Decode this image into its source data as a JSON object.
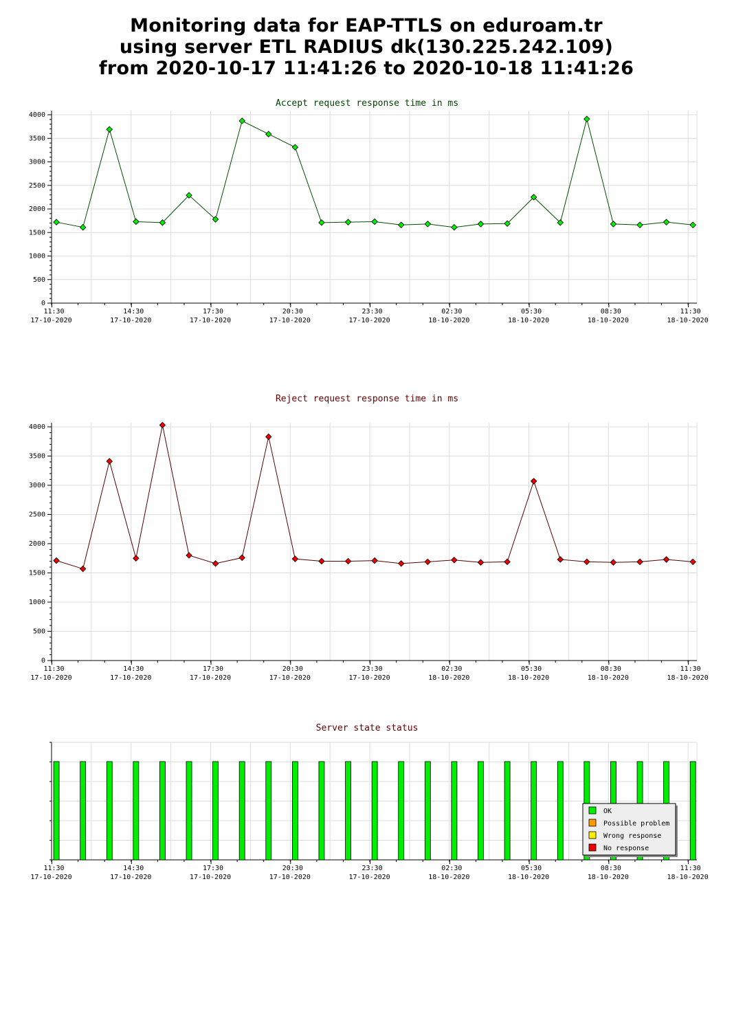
{
  "header": {
    "title_line1": "Monitoring data for EAP-TTLS on eduroam.tr",
    "title_line2": "using server ETL RADIUS dk(130.225.242.109)",
    "title_line3": "from 2020-10-17 11:41:26 to 2020-10-18 11:41:26"
  },
  "colors": {
    "accept_line": "#004d00",
    "accept_marker": "#00ee00",
    "reject_line": "#550000",
    "reject_marker": "#ee0000",
    "status_ok": "#00ee00",
    "status_possible_problem": "#ff9900",
    "status_wrong_response": "#ffee00",
    "status_no_response": "#ee0000",
    "accept_title": "#004400",
    "reject_title": "#660000",
    "status_title": "#660000"
  },
  "x_ticks": [
    {
      "time": "11:30",
      "date": "17-10-2020"
    },
    {
      "time": "14:30",
      "date": "17-10-2020"
    },
    {
      "time": "17:30",
      "date": "17-10-2020"
    },
    {
      "time": "20:30",
      "date": "17-10-2020"
    },
    {
      "time": "23:30",
      "date": "17-10-2020"
    },
    {
      "time": "02:30",
      "date": "18-10-2020"
    },
    {
      "time": "05:30",
      "date": "18-10-2020"
    },
    {
      "time": "08:30",
      "date": "18-10-2020"
    },
    {
      "time": "11:30",
      "date": "18-10-2020"
    }
  ],
  "chart_data": [
    {
      "type": "line",
      "title": "Accept request response time in ms",
      "x_unit": "hour",
      "x_range": [
        "2020-10-17 11:30",
        "2020-10-18 11:50"
      ],
      "ylim": [
        0,
        4000
      ],
      "yticks": [
        0,
        500,
        1000,
        1500,
        2000,
        2500,
        3000,
        3500,
        4000
      ],
      "grid": true,
      "x": [
        "2020-10-17 11:41",
        "2020-10-17 12:41",
        "2020-10-17 13:41",
        "2020-10-17 14:41",
        "2020-10-17 15:41",
        "2020-10-17 16:41",
        "2020-10-17 17:41",
        "2020-10-17 18:41",
        "2020-10-17 19:41",
        "2020-10-17 20:41",
        "2020-10-17 21:41",
        "2020-10-17 22:41",
        "2020-10-17 23:41",
        "2020-10-18 00:41",
        "2020-10-18 01:41",
        "2020-10-18 02:41",
        "2020-10-18 03:41",
        "2020-10-18 04:41",
        "2020-10-18 05:41",
        "2020-10-18 06:41",
        "2020-10-18 07:41",
        "2020-10-18 08:41",
        "2020-10-18 09:41",
        "2020-10-18 10:41",
        "2020-10-18 11:41"
      ],
      "values": [
        1720,
        1610,
        3690,
        1730,
        1710,
        2290,
        1780,
        3870,
        3590,
        3310,
        1710,
        1720,
        1730,
        1660,
        1680,
        1610,
        1680,
        1690,
        2250,
        1710,
        3910,
        1680,
        1660,
        1720,
        1660
      ]
    },
    {
      "type": "line",
      "title": "Reject request response time in ms",
      "x_unit": "hour",
      "x_range": [
        "2020-10-17 11:30",
        "2020-10-18 11:50"
      ],
      "ylim": [
        0,
        4000
      ],
      "yticks": [
        0,
        500,
        1000,
        1500,
        2000,
        2500,
        3000,
        3500,
        4000
      ],
      "grid": true,
      "x": [
        "2020-10-17 11:41",
        "2020-10-17 12:41",
        "2020-10-17 13:41",
        "2020-10-17 14:41",
        "2020-10-17 15:41",
        "2020-10-17 16:41",
        "2020-10-17 17:41",
        "2020-10-17 18:41",
        "2020-10-17 19:41",
        "2020-10-17 20:41",
        "2020-10-17 21:41",
        "2020-10-17 22:41",
        "2020-10-17 23:41",
        "2020-10-18 00:41",
        "2020-10-18 01:41",
        "2020-10-18 02:41",
        "2020-10-18 03:41",
        "2020-10-18 04:41",
        "2020-10-18 05:41",
        "2020-10-18 06:41",
        "2020-10-18 07:41",
        "2020-10-18 08:41",
        "2020-10-18 09:41",
        "2020-10-18 10:41",
        "2020-10-18 11:41"
      ],
      "values": [
        1710,
        1570,
        3410,
        1750,
        4030,
        1800,
        1660,
        1760,
        3830,
        1740,
        1700,
        1700,
        1710,
        1660,
        1690,
        1720,
        1680,
        1690,
        3070,
        1730,
        1690,
        1680,
        1690,
        1730,
        1690
      ]
    },
    {
      "type": "bar",
      "title": "Server state status",
      "x_unit": "hour",
      "x_range": [
        "2020-10-17 11:30",
        "2020-10-18 11:50"
      ],
      "grid": true,
      "legend": [
        "OK",
        "Possible problem",
        "Wrong response",
        "No response"
      ],
      "legend_position": "bottom-right",
      "x": [
        "2020-10-17 11:41",
        "2020-10-17 12:41",
        "2020-10-17 13:41",
        "2020-10-17 14:41",
        "2020-10-17 15:41",
        "2020-10-17 16:41",
        "2020-10-17 17:41",
        "2020-10-17 18:41",
        "2020-10-17 19:41",
        "2020-10-17 20:41",
        "2020-10-17 21:41",
        "2020-10-17 22:41",
        "2020-10-17 23:41",
        "2020-10-18 00:41",
        "2020-10-18 01:41",
        "2020-10-18 02:41",
        "2020-10-18 03:41",
        "2020-10-18 04:41",
        "2020-10-18 05:41",
        "2020-10-18 06:41",
        "2020-10-18 07:41",
        "2020-10-18 08:41",
        "2020-10-18 09:41",
        "2020-10-18 10:41",
        "2020-10-18 11:41"
      ],
      "states": [
        "OK",
        "OK",
        "OK",
        "OK",
        "OK",
        "OK",
        "OK",
        "OK",
        "OK",
        "OK",
        "OK",
        "OK",
        "OK",
        "OK",
        "OK",
        "OK",
        "OK",
        "OK",
        "OK",
        "OK",
        "OK",
        "OK",
        "OK",
        "OK",
        "OK"
      ]
    }
  ]
}
